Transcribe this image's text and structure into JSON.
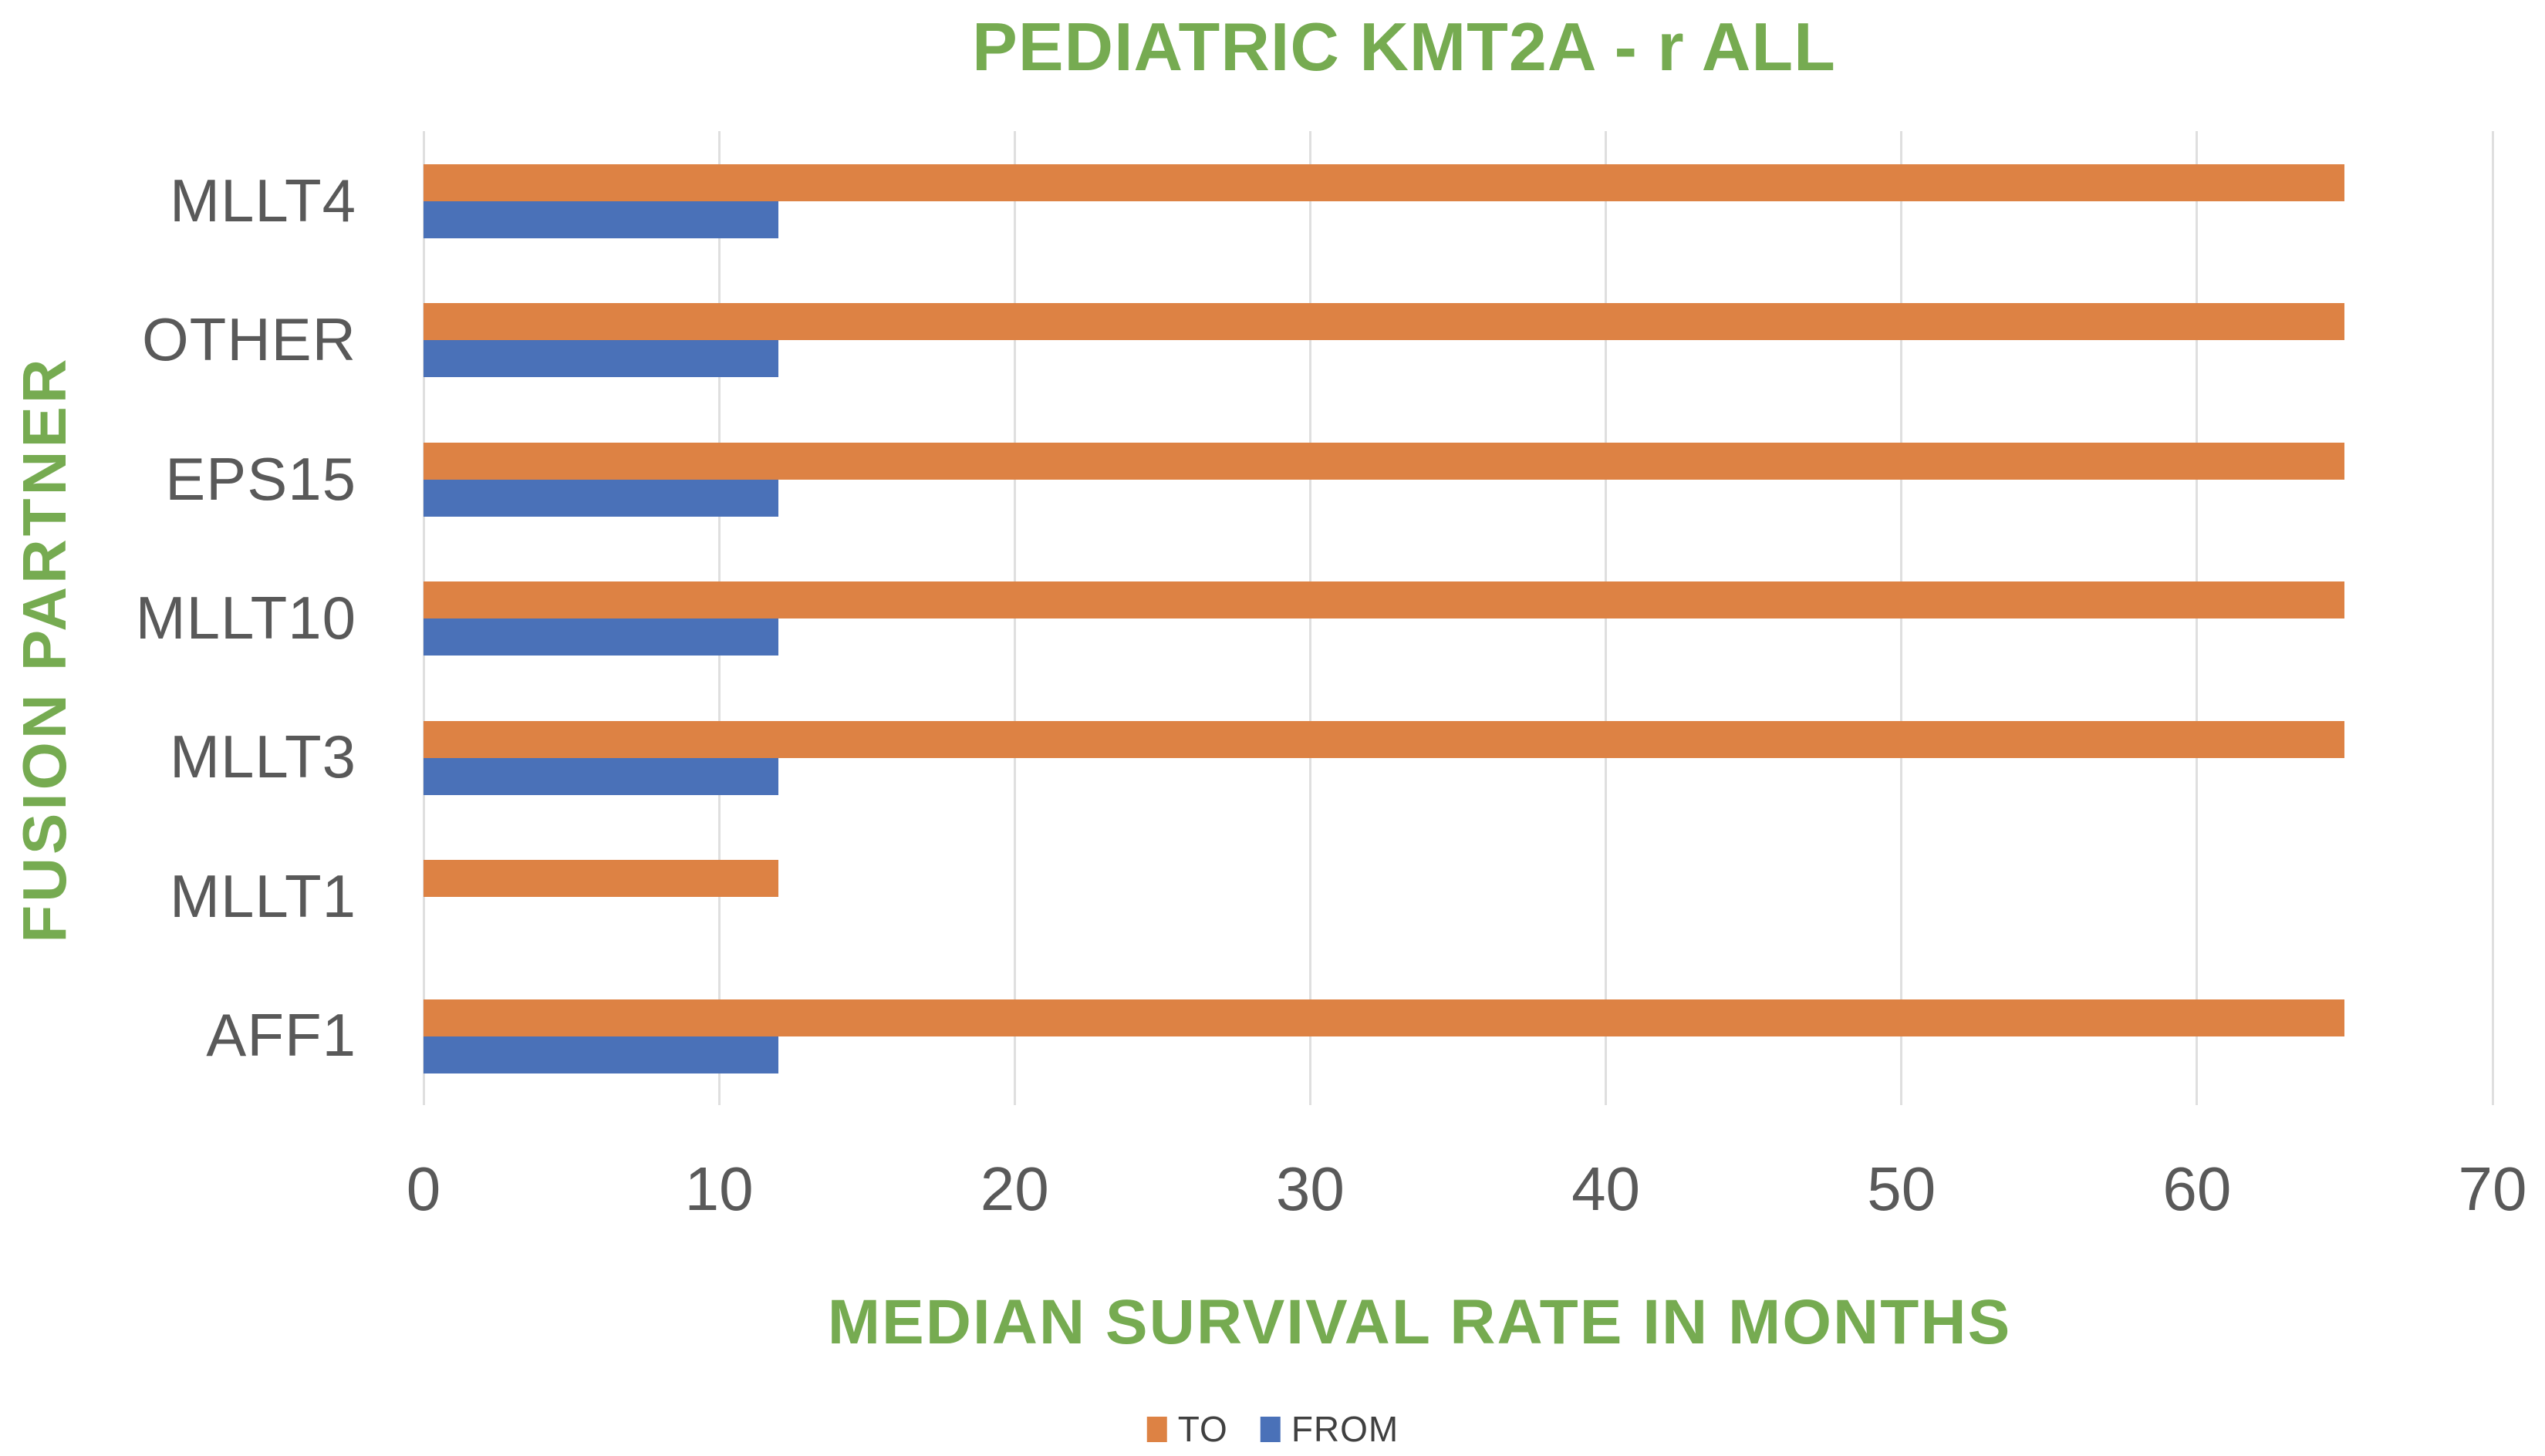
{
  "chart_data": {
    "type": "bar",
    "orientation": "horizontal",
    "title": "PEDIATRIC KMT2A - r ALL",
    "xlabel": "MEDIAN SURVIVAL RATE IN MONTHS",
    "ylabel": "FUSION PARTNER",
    "categories": [
      "MLLT4",
      "OTHER",
      "EPS15",
      "MLLT10",
      "MLLT3",
      "MLLT1",
      "AFF1"
    ],
    "series": [
      {
        "name": "TO",
        "color": "#DD8244",
        "values": [
          65,
          65,
          65,
          65,
          65,
          12,
          65
        ]
      },
      {
        "name": "FROM",
        "color": "#4A71B8",
        "values": [
          12,
          12,
          12,
          12,
          12,
          0,
          12
        ]
      }
    ],
    "xlim": [
      0,
      70
    ],
    "xticks": [
      0,
      10,
      20,
      30,
      40,
      50,
      60,
      70
    ],
    "grid": true,
    "legend_position": "bottom"
  },
  "colors": {
    "accent_green": "#76AB51",
    "bar_orange": "#DD8244",
    "bar_blue": "#4A71B8",
    "axis_text_gray": "#595959",
    "legend_text_gray": "#404040",
    "gridline_gray": "#DFDFDF"
  }
}
